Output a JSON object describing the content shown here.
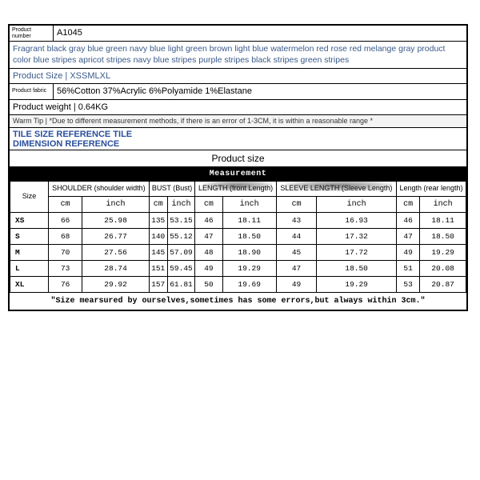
{
  "info": {
    "product_number_label": "Product number",
    "product_number_value": "A1045",
    "colors_text": "Fragrant black gray blue green navy blue light green brown light blue watermelon red rose red melange gray product color blue stripes apricot stripes navy blue stripes purple stripes black stripes green stripes",
    "product_size_line": "Product Size | XSSMLXL",
    "fabric_label": "Product fabric",
    "fabric_value": "56%Cotton 37%Acrylic 6%Polyamide 1%Elastane",
    "weight_line": "Product weight | 0.64KG",
    "tip_line": "Warm Tip | *Due to different measurement methods, if there is an error of 1-3CM, it is within a reasonable range *",
    "tile_ref_1": "TILE SIZE REFERENCE TILE",
    "tile_ref_2": "DIMENSION REFERENCE",
    "product_size_title": "Product size",
    "measurement_bar": "Measurement"
  },
  "headers": {
    "size": "Size",
    "shoulder": "SHOULDER (shoulder width)",
    "bust": "BUST (Bust)",
    "length1": "LENGTH (front Length)",
    "sleeve": "SLEEVE LENGTH (Sleeve Length)",
    "length2": "Length (rear length)",
    "cm": "cm",
    "inch": "inch"
  },
  "rows": [
    {
      "size": "XS",
      "c": [
        "66",
        "25.98",
        "135",
        "53.15",
        "46",
        "18.11",
        "43",
        "16.93",
        "46",
        "18.11"
      ]
    },
    {
      "size": "S",
      "c": [
        "68",
        "26.77",
        "140",
        "55.12",
        "47",
        "18.50",
        "44",
        "17.32",
        "47",
        "18.50"
      ]
    },
    {
      "size": "M",
      "c": [
        "70",
        "27.56",
        "145",
        "57.09",
        "48",
        "18.90",
        "45",
        "17.72",
        "49",
        "19.29"
      ]
    },
    {
      "size": "L",
      "c": [
        "73",
        "28.74",
        "151",
        "59.45",
        "49",
        "19.29",
        "47",
        "18.50",
        "51",
        "20.08"
      ]
    },
    {
      "size": "XL",
      "c": [
        "76",
        "29.92",
        "157",
        "61.81",
        "50",
        "19.69",
        "49",
        "19.29",
        "53",
        "20.87"
      ]
    }
  ],
  "footnote": "\"Size mearsured by ourselves,sometimes has some errors,but always within 3cm.\"",
  "colors": {
    "link_blue": "#3a5a8a",
    "heading_blue": "#2a4f9c",
    "border": "#000000",
    "bg": "#ffffff"
  }
}
